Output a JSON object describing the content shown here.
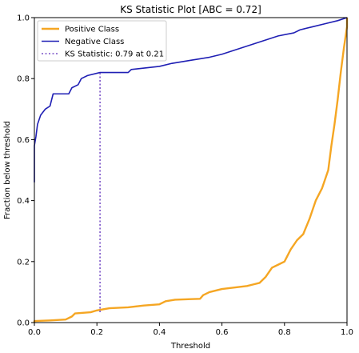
{
  "chart_data": {
    "type": "line",
    "title": "KS Statistic Plot [ABC = 0.72]",
    "xlabel": "Threshold",
    "ylabel": "Fraction below threshold",
    "xlim": [
      0,
      1
    ],
    "ylim": [
      0,
      1
    ],
    "x_ticks": [
      "0.0",
      "0.2",
      "0.4",
      "0.6",
      "0.8",
      "1.0"
    ],
    "y_ticks": [
      "0.0",
      "0.2",
      "0.4",
      "0.6",
      "0.8",
      "1.0"
    ],
    "x_tick_values": [
      0,
      0.2,
      0.4,
      0.6,
      0.8,
      1.0
    ],
    "y_tick_values": [
      0,
      0.2,
      0.4,
      0.6,
      0.8,
      1.0
    ],
    "grid": false,
    "legend_position": "top-left",
    "series": [
      {
        "name": "Positive Class",
        "color": "#f5a623",
        "points": [
          [
            0.0,
            0.0
          ],
          [
            0.0,
            0.005
          ],
          [
            0.05,
            0.007
          ],
          [
            0.1,
            0.01
          ],
          [
            0.12,
            0.02
          ],
          [
            0.13,
            0.03
          ],
          [
            0.18,
            0.034
          ],
          [
            0.2,
            0.04
          ],
          [
            0.24,
            0.047
          ],
          [
            0.3,
            0.05
          ],
          [
            0.35,
            0.056
          ],
          [
            0.4,
            0.06
          ],
          [
            0.42,
            0.07
          ],
          [
            0.45,
            0.075
          ],
          [
            0.5,
            0.077
          ],
          [
            0.53,
            0.078
          ],
          [
            0.54,
            0.09
          ],
          [
            0.56,
            0.1
          ],
          [
            0.6,
            0.11
          ],
          [
            0.64,
            0.115
          ],
          [
            0.68,
            0.12
          ],
          [
            0.7,
            0.125
          ],
          [
            0.72,
            0.13
          ],
          [
            0.74,
            0.15
          ],
          [
            0.76,
            0.18
          ],
          [
            0.78,
            0.19
          ],
          [
            0.8,
            0.2
          ],
          [
            0.82,
            0.24
          ],
          [
            0.84,
            0.27
          ],
          [
            0.86,
            0.29
          ],
          [
            0.88,
            0.34
          ],
          [
            0.9,
            0.4
          ],
          [
            0.92,
            0.44
          ],
          [
            0.94,
            0.5
          ],
          [
            0.95,
            0.58
          ],
          [
            0.96,
            0.65
          ],
          [
            0.97,
            0.73
          ],
          [
            0.98,
            0.82
          ],
          [
            0.99,
            0.9
          ],
          [
            1.0,
            0.97
          ],
          [
            1.0,
            1.0
          ]
        ]
      },
      {
        "name": "Negative Class",
        "color": "#1f1fb4",
        "points": [
          [
            0.0,
            0.46
          ],
          [
            0.0,
            0.58
          ],
          [
            0.005,
            0.61
          ],
          [
            0.01,
            0.65
          ],
          [
            0.02,
            0.68
          ],
          [
            0.035,
            0.7
          ],
          [
            0.05,
            0.71
          ],
          [
            0.06,
            0.75
          ],
          [
            0.11,
            0.75
          ],
          [
            0.12,
            0.77
          ],
          [
            0.14,
            0.78
          ],
          [
            0.15,
            0.8
          ],
          [
            0.17,
            0.81
          ],
          [
            0.21,
            0.82
          ],
          [
            0.3,
            0.82
          ],
          [
            0.31,
            0.83
          ],
          [
            0.4,
            0.84
          ],
          [
            0.44,
            0.85
          ],
          [
            0.5,
            0.86
          ],
          [
            0.56,
            0.87
          ],
          [
            0.6,
            0.88
          ],
          [
            0.66,
            0.9
          ],
          [
            0.72,
            0.92
          ],
          [
            0.78,
            0.94
          ],
          [
            0.83,
            0.95
          ],
          [
            0.85,
            0.96
          ],
          [
            0.89,
            0.97
          ],
          [
            0.93,
            0.98
          ],
          [
            0.97,
            0.99
          ],
          [
            1.0,
            1.0
          ]
        ]
      }
    ],
    "ks_line": {
      "name": "KS Statistic: 0.79 at 0.21",
      "color": "#7a52c7",
      "x": 0.21,
      "y_from": 0.034,
      "y_to": 0.82
    }
  }
}
